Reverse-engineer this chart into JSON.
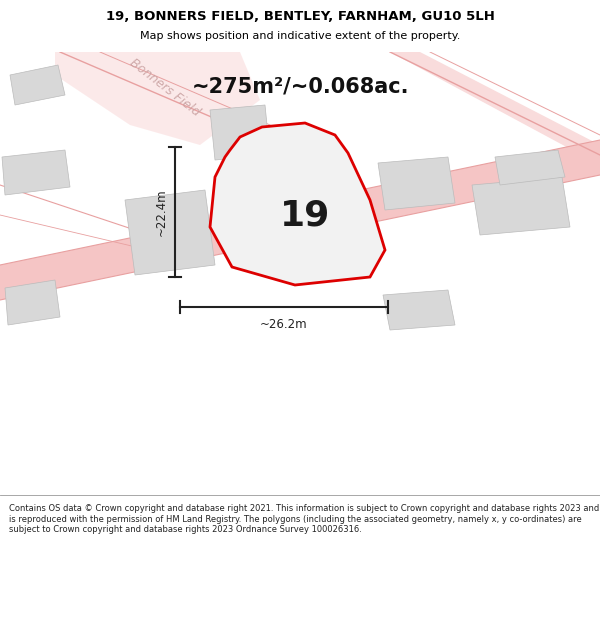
{
  "title": "19, BONNERS FIELD, BENTLEY, FARNHAM, GU10 5LH",
  "subtitle": "Map shows position and indicative extent of the property.",
  "area_text": "~275m²/~0.068ac.",
  "label_19": "19",
  "dim_width": "~26.2m",
  "dim_height": "~22.4m",
  "road_label": "Bonners Field",
  "footer": "Contains OS data © Crown copyright and database right 2021. This information is subject to Crown copyright and database rights 2023 and is reproduced with the permission of HM Land Registry. The polygons (including the associated geometry, namely x, y co-ordinates) are subject to Crown copyright and database rights 2023 Ordnance Survey 100026316.",
  "map_bg": "#efefef",
  "footer_bg": "#ffffff",
  "road_fill": "#f5c5c5",
  "road_fill2": "#f9d5d5",
  "plot_fill": "#e8e8e8",
  "plot_stroke": "#dd0000",
  "neighbor_fill": "#d8d8d8",
  "neighbor_stroke": "#bbbbbb",
  "light_road_color": "#e8a0a0",
  "dim_color": "#222222",
  "title_color": "#000000",
  "footer_color": "#222222",
  "title_fontsize": 9.5,
  "subtitle_fontsize": 8.0,
  "area_fontsize": 15,
  "label_fontsize": 26,
  "dim_fontsize": 8.5,
  "footer_fontsize": 6.0
}
